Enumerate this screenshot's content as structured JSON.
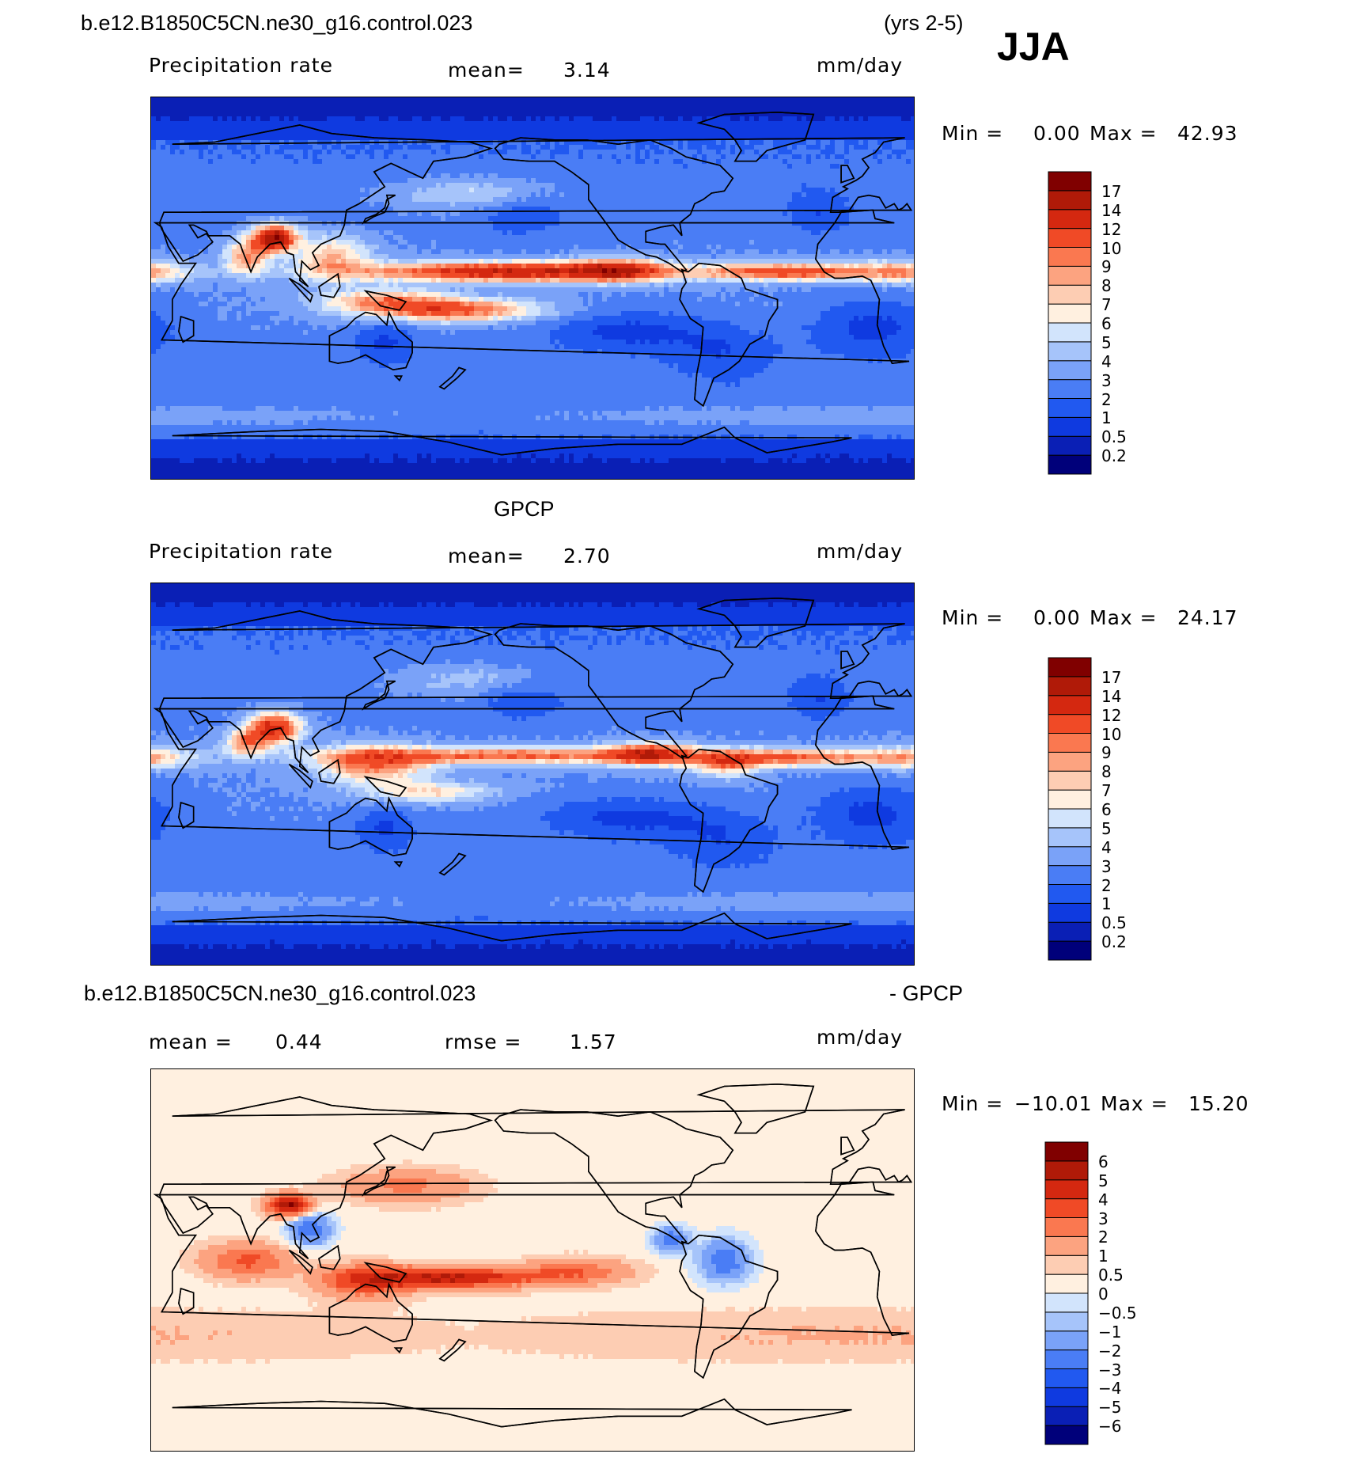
{
  "season": "JJA",
  "years": "(yrs 2-5)",
  "colors": {
    "precip": [
      "#00007a",
      "#0a1fb5",
      "#0f3ae0",
      "#2159f0",
      "#4a7df5",
      "#7aa2f8",
      "#a6c4fa",
      "#d2e4fc",
      "#fff0e0",
      "#fdcdb3",
      "#fca380",
      "#fa7850",
      "#f04a26",
      "#d42810",
      "#b01a08",
      "#800000"
    ],
    "diff": [
      "#00007a",
      "#0a1fb5",
      "#0f3ae0",
      "#2159f0",
      "#4a7df5",
      "#7aa2f8",
      "#a6c4fa",
      "#d2e4fc",
      "#fff0e0",
      "#fdcdb3",
      "#fca380",
      "#fa7850",
      "#f04a26",
      "#d42810",
      "#b01a08",
      "#800000"
    ]
  },
  "panels": [
    {
      "case_title": "b.e12.B1850C5CN.ne30_g16.control.023",
      "field": "Precipitation rate",
      "mean_label": "mean=",
      "mean_value": "3.14",
      "units": "mm/day",
      "min_label": "Min =",
      "min_value": "0.00",
      "max_label": "Max =",
      "max_value": "42.93",
      "levels": [
        "0.2",
        "0.5",
        "1",
        "2",
        "3",
        "4",
        "5",
        "6",
        "7",
        "8",
        "9",
        "10",
        "12",
        "14",
        "17"
      ]
    },
    {
      "case_title": "GPCP",
      "field": "Precipitation rate",
      "mean_label": "mean=",
      "mean_value": "2.70",
      "units": "mm/day",
      "min_label": "Min =",
      "min_value": "0.00",
      "max_label": "Max =",
      "max_value": "24.17",
      "levels": [
        "0.2",
        "0.5",
        "1",
        "2",
        "3",
        "4",
        "5",
        "6",
        "7",
        "8",
        "9",
        "10",
        "12",
        "14",
        "17"
      ]
    },
    {
      "case_title": "b.e12.B1850C5CN.ne30_g16.control.023",
      "case_title_suffix": "- GPCP",
      "mean_label": "mean =",
      "mean_value": "0.44",
      "rmse_label": "rmse =",
      "rmse_value": "1.57",
      "units": "mm/day",
      "min_label": "Min =",
      "min_value": "−10.01",
      "max_label": "Max =",
      "max_value": "15.20",
      "levels": [
        "−6",
        "−5",
        "−4",
        "−3",
        "−2",
        "−1",
        "−0.5",
        "0",
        "0.5",
        "1",
        "2",
        "3",
        "4",
        "5",
        "6"
      ]
    }
  ],
  "chart_data": [
    {
      "type": "heatmap",
      "title": "b.e12.B1850C5CN.ne30_g16.control.023",
      "subtitle": "Precipitation rate",
      "units": "mm/day",
      "mean": 3.14,
      "min": 0.0,
      "max": 42.93,
      "contour_levels": [
        0.2,
        0.5,
        1,
        2,
        3,
        4,
        5,
        6,
        7,
        8,
        9,
        10,
        12,
        14,
        17
      ]
    },
    {
      "type": "heatmap",
      "title": "GPCP",
      "subtitle": "Precipitation rate",
      "units": "mm/day",
      "mean": 2.7,
      "min": 0.0,
      "max": 24.17,
      "contour_levels": [
        0.2,
        0.5,
        1,
        2,
        3,
        4,
        5,
        6,
        7,
        8,
        9,
        10,
        12,
        14,
        17
      ]
    },
    {
      "type": "heatmap",
      "title": "b.e12.B1850C5CN.ne30_g16.control.023 - GPCP",
      "units": "mm/day",
      "mean": 0.44,
      "rmse": 1.57,
      "min": -10.01,
      "max": 15.2,
      "contour_levels": [
        -6,
        -5,
        -4,
        -3,
        -2,
        -1,
        -0.5,
        0,
        0.5,
        1,
        2,
        3,
        4,
        5,
        6
      ]
    }
  ]
}
